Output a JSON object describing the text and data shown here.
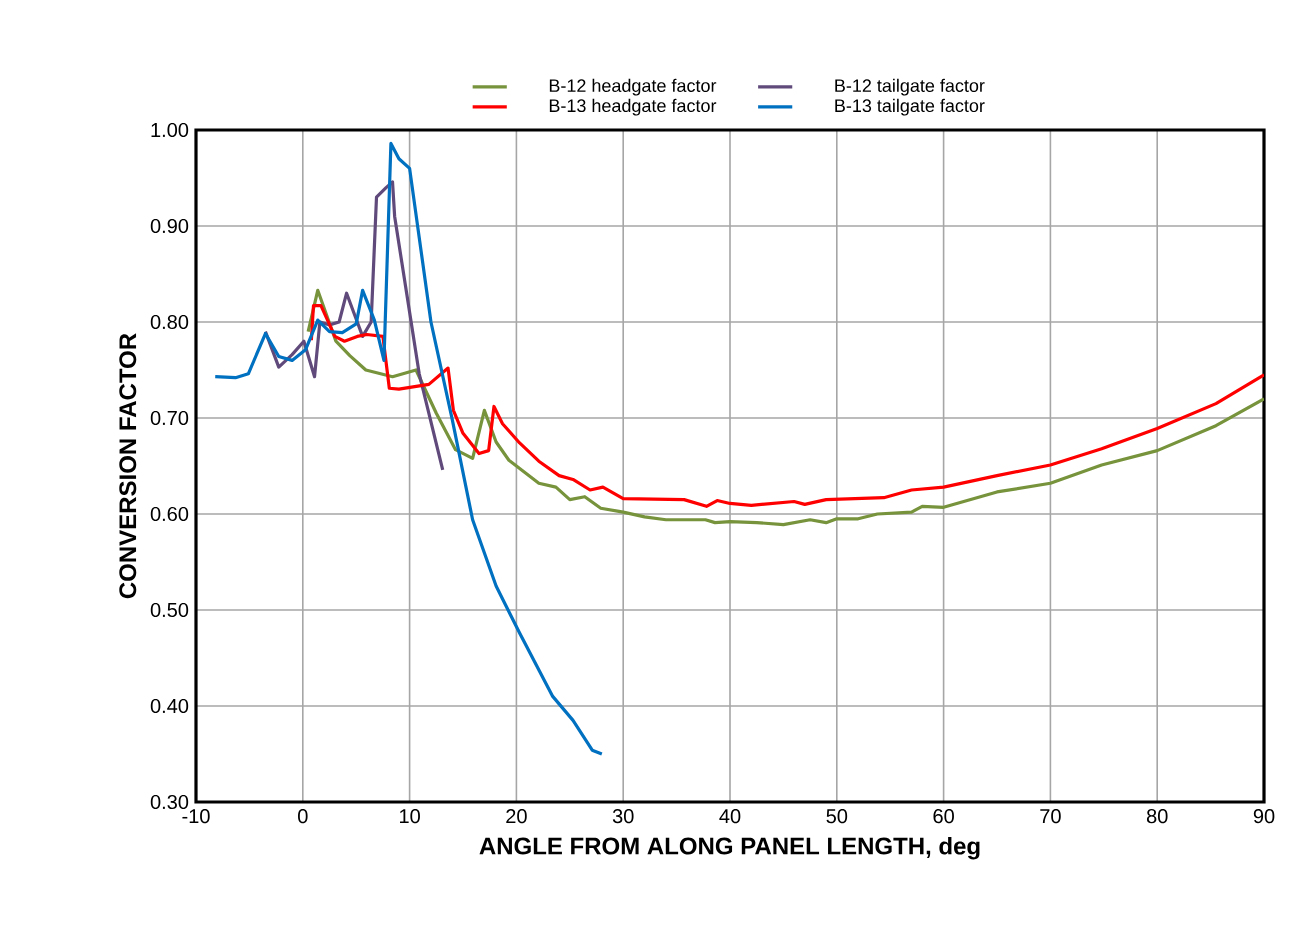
{
  "chart_data": {
    "type": "line",
    "xlabel": "ANGLE FROM ALONG PANEL LENGTH, deg",
    "ylabel": "CONVERSION FACTOR",
    "xlim": [
      -10,
      90
    ],
    "xticks": [
      -10,
      0,
      10,
      20,
      30,
      40,
      50,
      60,
      70,
      80,
      90
    ],
    "ylim": [
      0.3,
      1.0
    ],
    "yticks": [
      {
        "value": 0.3,
        "label": "0.30"
      },
      {
        "value": 0.4,
        "label": "0.40"
      },
      {
        "value": 0.5,
        "label": "0.50"
      },
      {
        "value": 0.6,
        "label": "0.60"
      },
      {
        "value": 0.7,
        "label": "0.70"
      },
      {
        "value": 0.8,
        "label": "0.80"
      },
      {
        "value": 0.9,
        "label": "0.90"
      },
      {
        "value": 1.0,
        "label": "1.00"
      }
    ],
    "grid": true,
    "legend": "top",
    "marker": "none",
    "line_style": "solid",
    "series": [
      {
        "name": "B-12 headgate factor",
        "color": "#77933c",
        "x": [
          0.5,
          1.4,
          3.1,
          4.4,
          5.9,
          8.4,
          10.6,
          12.5,
          14.3,
          15.9,
          17,
          18.1,
          19.3,
          22.1,
          23.7,
          25,
          26.4,
          27.9,
          30,
          32,
          34,
          37.7,
          38.6,
          40,
          42.5,
          45,
          47.5,
          49,
          50,
          52,
          53.8,
          57,
          58,
          60,
          65,
          70,
          74.8,
          80,
          85.5,
          90
        ],
        "values": [
          0.79,
          0.833,
          0.78,
          0.765,
          0.75,
          0.743,
          0.75,
          0.705,
          0.667,
          0.658,
          0.708,
          0.675,
          0.656,
          0.632,
          0.628,
          0.615,
          0.618,
          0.606,
          0.602,
          0.597,
          0.594,
          0.594,
          0.591,
          0.592,
          0.591,
          0.589,
          0.594,
          0.591,
          0.595,
          0.595,
          0.6,
          0.602,
          0.608,
          0.607,
          0.623,
          0.632,
          0.651,
          0.666,
          0.692,
          0.72
        ]
      },
      {
        "name": "B-12 tailgate factor",
        "color": "#604a7b",
        "x": [
          -3.5,
          -2.25,
          -1,
          0.1,
          1.1,
          1.6,
          2.5,
          3.4,
          4.1,
          4.7,
          5.6,
          6.4,
          6.9,
          7.8,
          8.4,
          8.6,
          10.9,
          13.1
        ],
        "values": [
          0.79,
          0.753,
          0.766,
          0.78,
          0.743,
          0.8,
          0.797,
          0.8,
          0.83,
          0.812,
          0.785,
          0.8,
          0.93,
          0.94,
          0.946,
          0.91,
          0.746,
          0.646
        ]
      },
      {
        "name": "B-13 headgate factor",
        "color": "#ff0000",
        "x": [
          0.8,
          1,
          1.7,
          3,
          3.9,
          5.1,
          6,
          7.5,
          8.1,
          9,
          11.8,
          13.6,
          14.1,
          15,
          16.5,
          17.4,
          17.9,
          18.7,
          20.3,
          22.1,
          24,
          25.3,
          26.9,
          28.1,
          30,
          35.7,
          37.8,
          38.8,
          40,
          42,
          46,
          47,
          49,
          54.4,
          57,
          60,
          65,
          70,
          74.8,
          80,
          85.5,
          90
        ],
        "values": [
          0.781,
          0.817,
          0.817,
          0.785,
          0.78,
          0.785,
          0.787,
          0.785,
          0.731,
          0.73,
          0.735,
          0.752,
          0.708,
          0.684,
          0.663,
          0.666,
          0.712,
          0.694,
          0.674,
          0.655,
          0.64,
          0.636,
          0.625,
          0.628,
          0.616,
          0.615,
          0.608,
          0.614,
          0.611,
          0.609,
          0.613,
          0.61,
          0.615,
          0.617,
          0.625,
          0.628,
          0.64,
          0.651,
          0.668,
          0.689,
          0.715,
          0.745
        ]
      },
      {
        "name": "B-13 tailgate factor",
        "color": "#0070c0",
        "x": [
          -8.2,
          -6.3,
          -5.1,
          -3.5,
          -2.25,
          -1,
          0.25,
          1.4,
          2.5,
          3.7,
          5,
          5.6,
          6.7,
          7.6,
          8.25,
          9,
          10,
          12,
          14,
          15.9,
          18.1,
          20.3,
          23.4,
          25.3,
          27.1,
          28
        ],
        "values": [
          0.743,
          0.742,
          0.746,
          0.788,
          0.764,
          0.76,
          0.771,
          0.802,
          0.79,
          0.789,
          0.798,
          0.833,
          0.802,
          0.76,
          0.986,
          0.97,
          0.96,
          0.8,
          0.698,
          0.594,
          0.525,
          0.476,
          0.41,
          0.385,
          0.354,
          0.35
        ]
      }
    ]
  }
}
